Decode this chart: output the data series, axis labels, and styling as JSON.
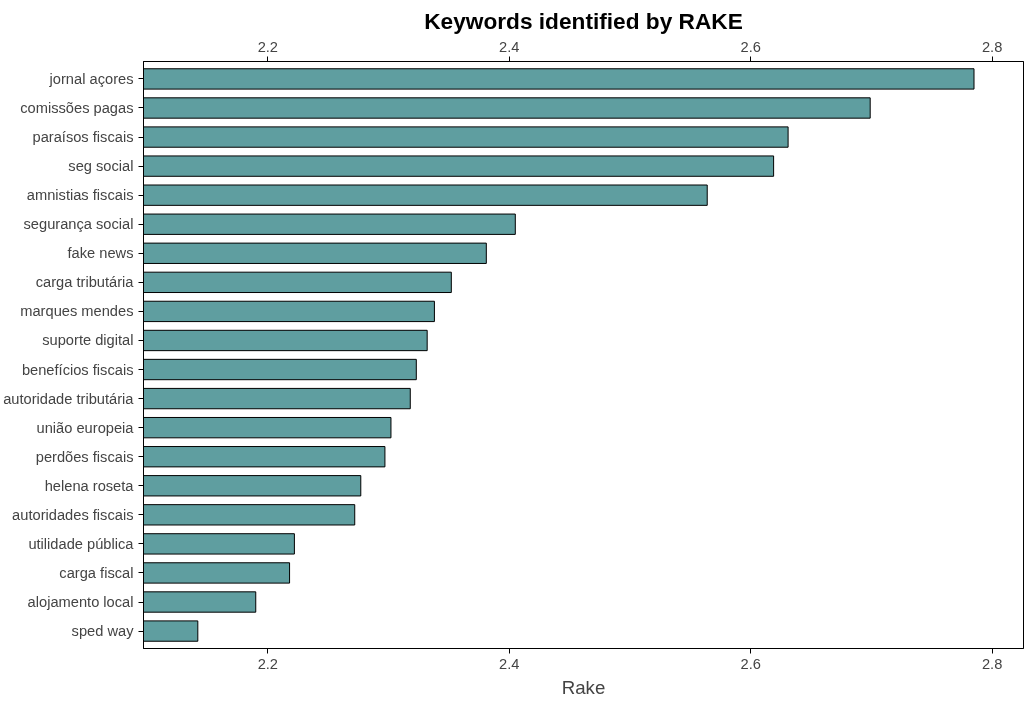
{
  "chart_data": {
    "type": "bar",
    "orientation": "horizontal",
    "title": "Keywords identified by RAKE",
    "xlabel": "Rake",
    "categories": [
      "jornal açores",
      "comissões pagas",
      "paraísos fiscais",
      "seg social",
      "amnistias fiscais",
      "segurança social",
      "fake news",
      "carga tributária",
      "marques mendes",
      "suporte digital",
      "benefícios fiscais",
      "autoridade tributária",
      "união europeia",
      "perdões fiscais",
      "helena roseta",
      "autoridades fiscais",
      "utilidade pública",
      "carga fiscal",
      "alojamento local",
      "sped way"
    ],
    "values": [
      2.785,
      2.699,
      2.631,
      2.619,
      2.564,
      2.405,
      2.381,
      2.352,
      2.338,
      2.332,
      2.323,
      2.318,
      2.302,
      2.297,
      2.277,
      2.272,
      2.222,
      2.218,
      2.19,
      2.142
    ],
    "color": "#5f9ea0",
    "xlim": [
      2.097,
      2.826
    ],
    "xticks": [
      2.2,
      2.4,
      2.6,
      2.8
    ],
    "x2lim": [
      2.097,
      2.826
    ],
    "x2ticks": [
      2.2,
      2.4,
      2.6,
      2.8
    ],
    "grid": false
  }
}
